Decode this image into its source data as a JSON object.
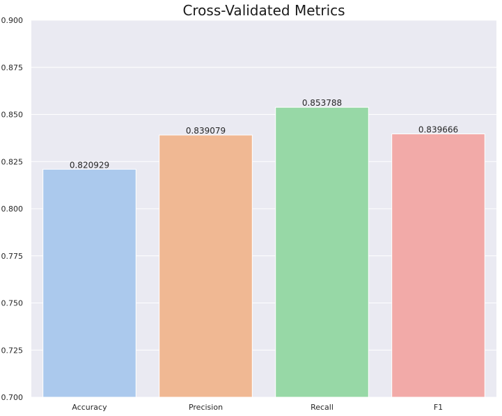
{
  "chart_data": {
    "type": "bar",
    "title": "Cross-Validated Metrics",
    "xlabel": "",
    "ylabel": "",
    "categories": [
      "Accuracy",
      "Precision",
      "Recall",
      "F1"
    ],
    "values": [
      0.820929,
      0.839079,
      0.853788,
      0.839666
    ],
    "value_labels": [
      "0.820929",
      "0.839079",
      "0.853788",
      "0.839666"
    ],
    "ylim": [
      0.7,
      0.9
    ],
    "yticks": [
      0.7,
      0.725,
      0.75,
      0.775,
      0.8,
      0.825,
      0.85,
      0.875,
      0.9
    ],
    "ytick_labels": [
      "0.700",
      "0.725",
      "0.750",
      "0.775",
      "0.800",
      "0.825",
      "0.850",
      "0.875",
      "0.900"
    ],
    "colors": [
      "#abc9ed",
      "#f0b893",
      "#97d8a6",
      "#f2aaa8"
    ],
    "background_color": "#eaeaf2",
    "grid": true,
    "grid_axis": "y",
    "grid_color": "#ffffff"
  }
}
